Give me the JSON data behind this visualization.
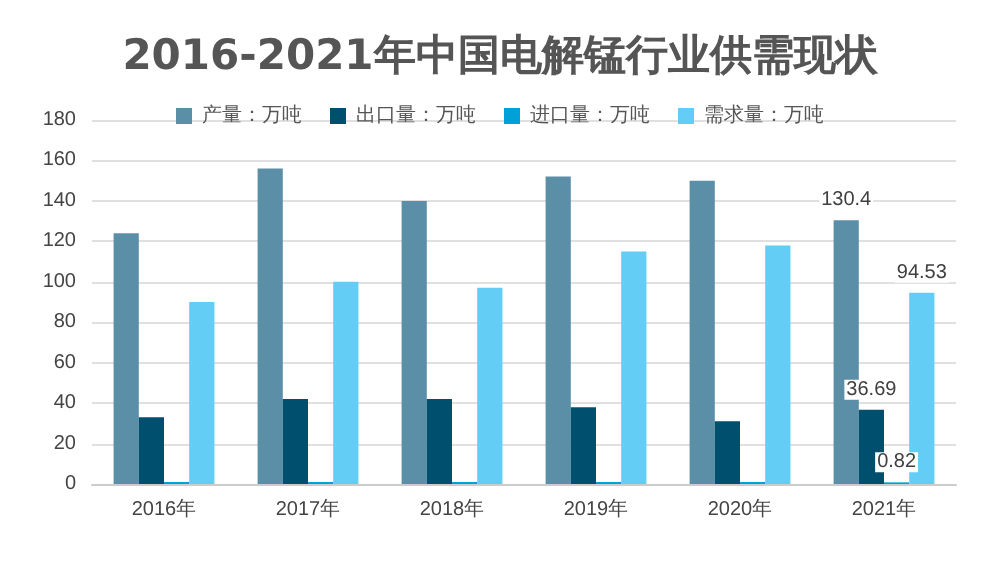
{
  "chart_data": {
    "type": "bar",
    "title": "2016-2021年中国电解锰行业供需现状",
    "categories": [
      "2016年",
      "2017年",
      "2018年",
      "2019年",
      "2020年",
      "2021年"
    ],
    "series": [
      {
        "name": "产量：万吨",
        "color": "#5b8fa8",
        "values": [
          124,
          156,
          140,
          152,
          150,
          130.4
        ],
        "value_labels": [
          null,
          null,
          null,
          null,
          null,
          "130.4"
        ]
      },
      {
        "name": "出口量：万吨",
        "color": "#004f6e",
        "values": [
          33,
          42,
          42,
          38,
          31,
          36.69
        ],
        "value_labels": [
          null,
          null,
          null,
          null,
          null,
          "36.69"
        ]
      },
      {
        "name": "进口量：万吨",
        "color": "#00a0d8",
        "values": [
          1,
          1,
          1,
          1,
          1,
          0.82
        ],
        "value_labels": [
          null,
          null,
          null,
          null,
          null,
          "0.82"
        ]
      },
      {
        "name": "需求量：万吨",
        "color": "#63cdf5",
        "values": [
          90,
          100,
          97,
          115,
          118,
          94.53
        ],
        "value_labels": [
          null,
          null,
          null,
          null,
          null,
          "94.53"
        ]
      }
    ],
    "ylim": [
      0,
      180
    ],
    "yticks": [
      0,
      20,
      40,
      60,
      80,
      100,
      120,
      140,
      160,
      180
    ],
    "grid": true,
    "legend": "top"
  }
}
